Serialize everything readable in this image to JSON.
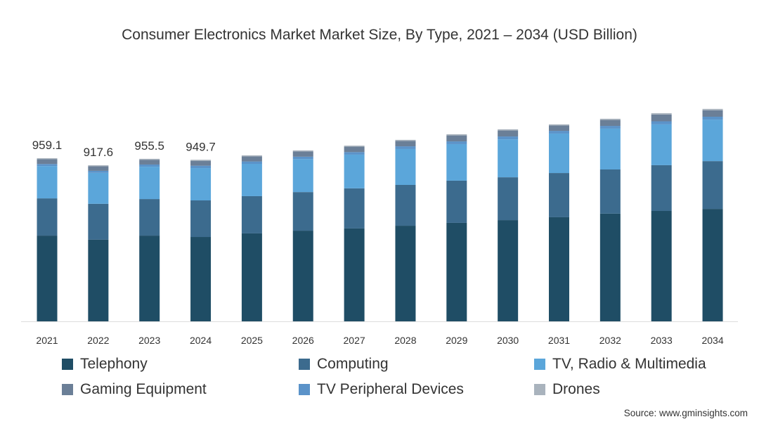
{
  "chart_data": {
    "type": "bar",
    "stacked": true,
    "title": "Consumer Electronics Market Market Size, By Type, 2021 – 2034 (USD Billion)",
    "xlabel": "",
    "ylabel": "",
    "ylim": [
      0,
      1300
    ],
    "grid": false,
    "legend_position": "bottom",
    "categories": [
      "2021",
      "2022",
      "2023",
      "2024",
      "2025",
      "2026",
      "2027",
      "2028",
      "2029",
      "2030",
      "2031",
      "2032",
      "2033",
      "2034"
    ],
    "series": [
      {
        "name": "Telephony",
        "color": "#1f4d65",
        "values": [
          504,
          480,
          504,
          496,
          517,
          533,
          546,
          562,
          579,
          595,
          612,
          633,
          649,
          661
        ]
      },
      {
        "name": "Computing",
        "color": "#3c6b8e",
        "values": [
          219,
          211,
          215,
          215,
          219,
          227,
          236,
          240,
          248,
          252,
          260,
          260,
          269,
          281
        ]
      },
      {
        "name": "TV, Radio & Multimedia",
        "color": "#5ba6da",
        "values": [
          190,
          182,
          190,
          190,
          190,
          194,
          198,
          211,
          215,
          223,
          232,
          240,
          240,
          244
        ]
      },
      {
        "name": "TV Peripheral Devices",
        "color": "#5b93c9",
        "values": [
          12,
          12,
          13,
          14,
          14,
          14,
          15,
          16,
          16,
          17,
          16,
          16,
          18,
          17
        ]
      },
      {
        "name": "Gaming Equipment",
        "color": "#6b7f97",
        "values": [
          28,
          27,
          28,
          29,
          30,
          31,
          32,
          32,
          35,
          35,
          32,
          35,
          40,
          38
        ]
      },
      {
        "name": "Drones",
        "color": "#a9b3bd",
        "values": [
          6,
          5.6,
          5.5,
          5.7,
          6,
          6,
          6,
          6,
          7,
          7,
          6,
          7,
          8,
          8
        ]
      }
    ],
    "data_labels": [
      {
        "category": "2021",
        "text": "959.1"
      },
      {
        "category": "2022",
        "text": "917.6"
      },
      {
        "category": "2023",
        "text": "955.5"
      },
      {
        "category": "2024",
        "text": "949.7"
      }
    ],
    "legend_order": [
      "Telephony",
      "Computing",
      "TV, Radio & Multimedia",
      "Gaming Equipment",
      "TV Peripheral Devices",
      "Drones"
    ]
  },
  "source": "Source: www.gminsights.com"
}
